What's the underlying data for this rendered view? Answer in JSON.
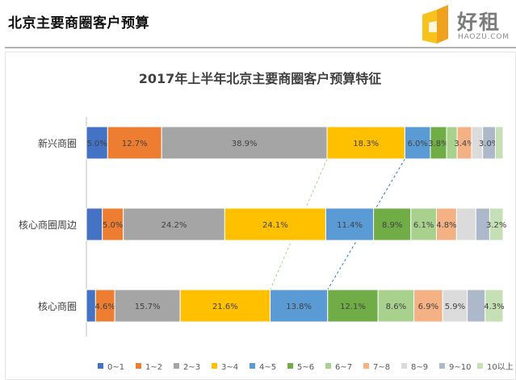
{
  "header": {
    "title": "北京主要商圈客户预算",
    "logo_text": "好租",
    "logo_sub": "HAOZU.COM"
  },
  "chart_data": {
    "type": "bar",
    "orientation": "horizontal",
    "stacked": true,
    "normalized": true,
    "title": "2017年上半年北京主要商圈客户预算特征",
    "categories": [
      "新兴商圈",
      "核心商圈周边",
      "核心商圈"
    ],
    "series": [
      {
        "name": "0~1",
        "color": "#4472c4",
        "values": [
          5.0,
          3.8,
          2.2
        ],
        "labels": [
          "5.0%",
          "",
          ""
        ]
      },
      {
        "name": "1~2",
        "color": "#ed7d31",
        "values": [
          12.7,
          5.0,
          4.6
        ],
        "labels": [
          "12.7%",
          "5.0%",
          "4.6%"
        ]
      },
      {
        "name": "2~3",
        "color": "#a5a5a5",
        "values": [
          38.9,
          24.2,
          15.7
        ],
        "labels": [
          "38.9%",
          "24.2%",
          "15.7%"
        ]
      },
      {
        "name": "3~4",
        "color": "#ffc000",
        "values": [
          18.3,
          24.1,
          21.6
        ],
        "labels": [
          "18.3%",
          "24.1%",
          "21.6%"
        ]
      },
      {
        "name": "4~5",
        "color": "#5b9bd5",
        "values": [
          6.0,
          11.4,
          13.8
        ],
        "labels": [
          "6.0%",
          "11.4%",
          "13.8%"
        ]
      },
      {
        "name": "5~6",
        "color": "#70ad47",
        "values": [
          3.8,
          8.9,
          12.1
        ],
        "labels": [
          "3.8%",
          "8.9%",
          "12.1%"
        ]
      },
      {
        "name": "6~7",
        "color": "#a9d18e",
        "values": [
          2.5,
          6.1,
          8.6
        ],
        "labels": [
          "",
          "6.1%",
          "8.6%"
        ]
      },
      {
        "name": "7~8",
        "color": "#f4b183",
        "values": [
          3.4,
          4.8,
          6.9
        ],
        "labels": [
          "3.4%",
          "4.8%",
          "6.9%"
        ]
      },
      {
        "name": "8~9",
        "color": "#dbdbdb",
        "values": [
          2.6,
          4.6,
          5.9
        ],
        "labels": [
          "",
          "",
          "5.9%"
        ]
      },
      {
        "name": "9~10",
        "color": "#adb9ca",
        "values": [
          3.0,
          3.3,
          4.3
        ],
        "labels": [
          "3.0%",
          "",
          ""
        ]
      },
      {
        "name": "10以上",
        "color": "#c5e0b4",
        "values": [
          1.8,
          3.2,
          4.3
        ],
        "labels": [
          "",
          "3.2%",
          "4.3%"
        ]
      }
    ],
    "connectors": [
      {
        "between": [
          "新兴商圈",
          "核心商圈"
        ],
        "series": "3~4",
        "color": "#a9d18e"
      },
      {
        "between": [
          "新兴商圈",
          "核心商圈"
        ],
        "series": "4~5",
        "color": "#2e75b6"
      }
    ],
    "legend_position": "bottom",
    "grid": false
  }
}
